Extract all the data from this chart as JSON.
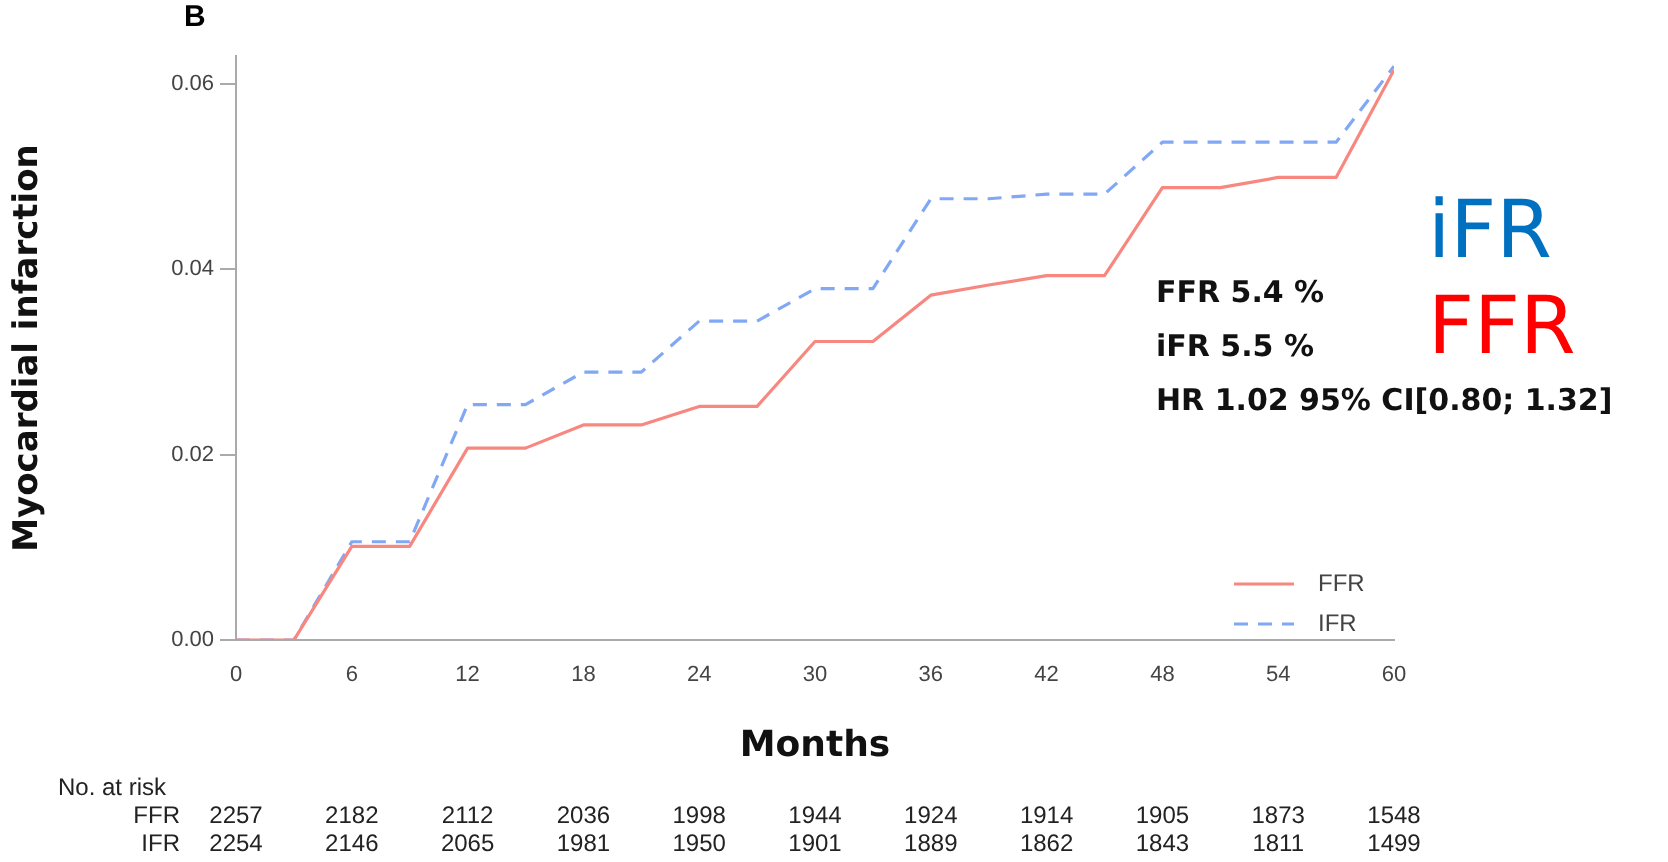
{
  "chart_data": {
    "type": "line",
    "xlabel": "Months",
    "ylabel": "Myocardial infarction",
    "x": [
      0,
      3,
      6,
      9,
      12,
      15,
      18,
      21,
      24,
      27,
      30,
      33,
      36,
      39,
      42,
      45,
      48,
      51,
      54,
      57,
      60
    ],
    "series": [
      {
        "name": "FFR",
        "color": "#f8877f",
        "line_style": "solid",
        "values": [
          0,
          0,
          0.0101,
          0.0101,
          0.0207,
          0.0207,
          0.0232,
          0.0232,
          0.0252,
          0.0252,
          0.0322,
          0.0322,
          0.0372,
          0.0383,
          0.0393,
          0.0393,
          0.0488,
          0.0488,
          0.0499,
          0.0499,
          0.0615
        ]
      },
      {
        "name": "IFR",
        "color": "#80a8f5",
        "line_style": "dashed",
        "values": [
          0,
          0,
          0.0106,
          0.0106,
          0.0254,
          0.0254,
          0.0289,
          0.0289,
          0.0344,
          0.0344,
          0.0379,
          0.0379,
          0.0476,
          0.0476,
          0.0481,
          0.0481,
          0.0537,
          0.0537,
          0.0537,
          0.0537,
          0.0619
        ]
      }
    ],
    "xlim": [
      0,
      60
    ],
    "xticks": [
      0,
      6,
      12,
      18,
      24,
      30,
      36,
      42,
      48,
      54,
      60
    ],
    "ylim": [
      0,
      0.063
    ],
    "yticks": [
      {
        "value": 0,
        "label": "0.00"
      },
      {
        "value": 0.02,
        "label": "0.02"
      },
      {
        "value": 0.04,
        "label": "0.04"
      },
      {
        "value": 0.06,
        "label": "0.06"
      }
    ],
    "grid": false,
    "legend": "bottom right",
    "marker": "none",
    "annotations": [
      "B",
      "FFR 5.4 %",
      "iFR 5.5 %",
      "HR 1.02 95% CI[0.80; 1.32]",
      "iFR",
      "FFR",
      "No. at risk",
      "FFR",
      "2257",
      "2182",
      "2112",
      "2036",
      "1998",
      "1944",
      "1924",
      "1914",
      "1905",
      "1873",
      "1548",
      "IFR",
      "2254",
      "2146",
      "2065",
      "1981",
      "1950",
      "1901",
      "1889",
      "1862",
      "1843",
      "1811",
      "1499"
    ]
  }
}
